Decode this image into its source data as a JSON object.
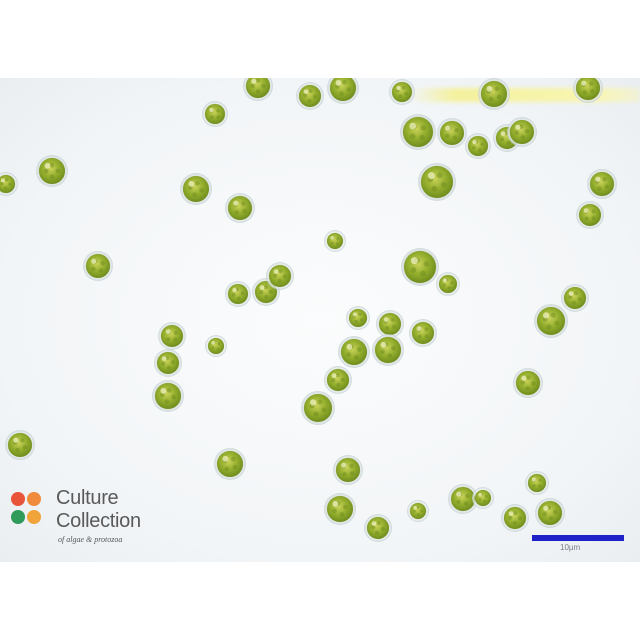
{
  "image": {
    "subject": "Micrograph of spherical green algal cells",
    "background_color": "#f4f6f8",
    "cell_color": "#8fae2a"
  },
  "logo": {
    "line1": "Culture",
    "line2": "Collection",
    "tagline": "of algae & protozoa",
    "dot_colors": [
      "#e8553a",
      "#f08a3c",
      "#2f9a5a",
      "#f0a43a"
    ]
  },
  "scale_bar": {
    "color": "#1e22c8",
    "label": "10µm"
  }
}
